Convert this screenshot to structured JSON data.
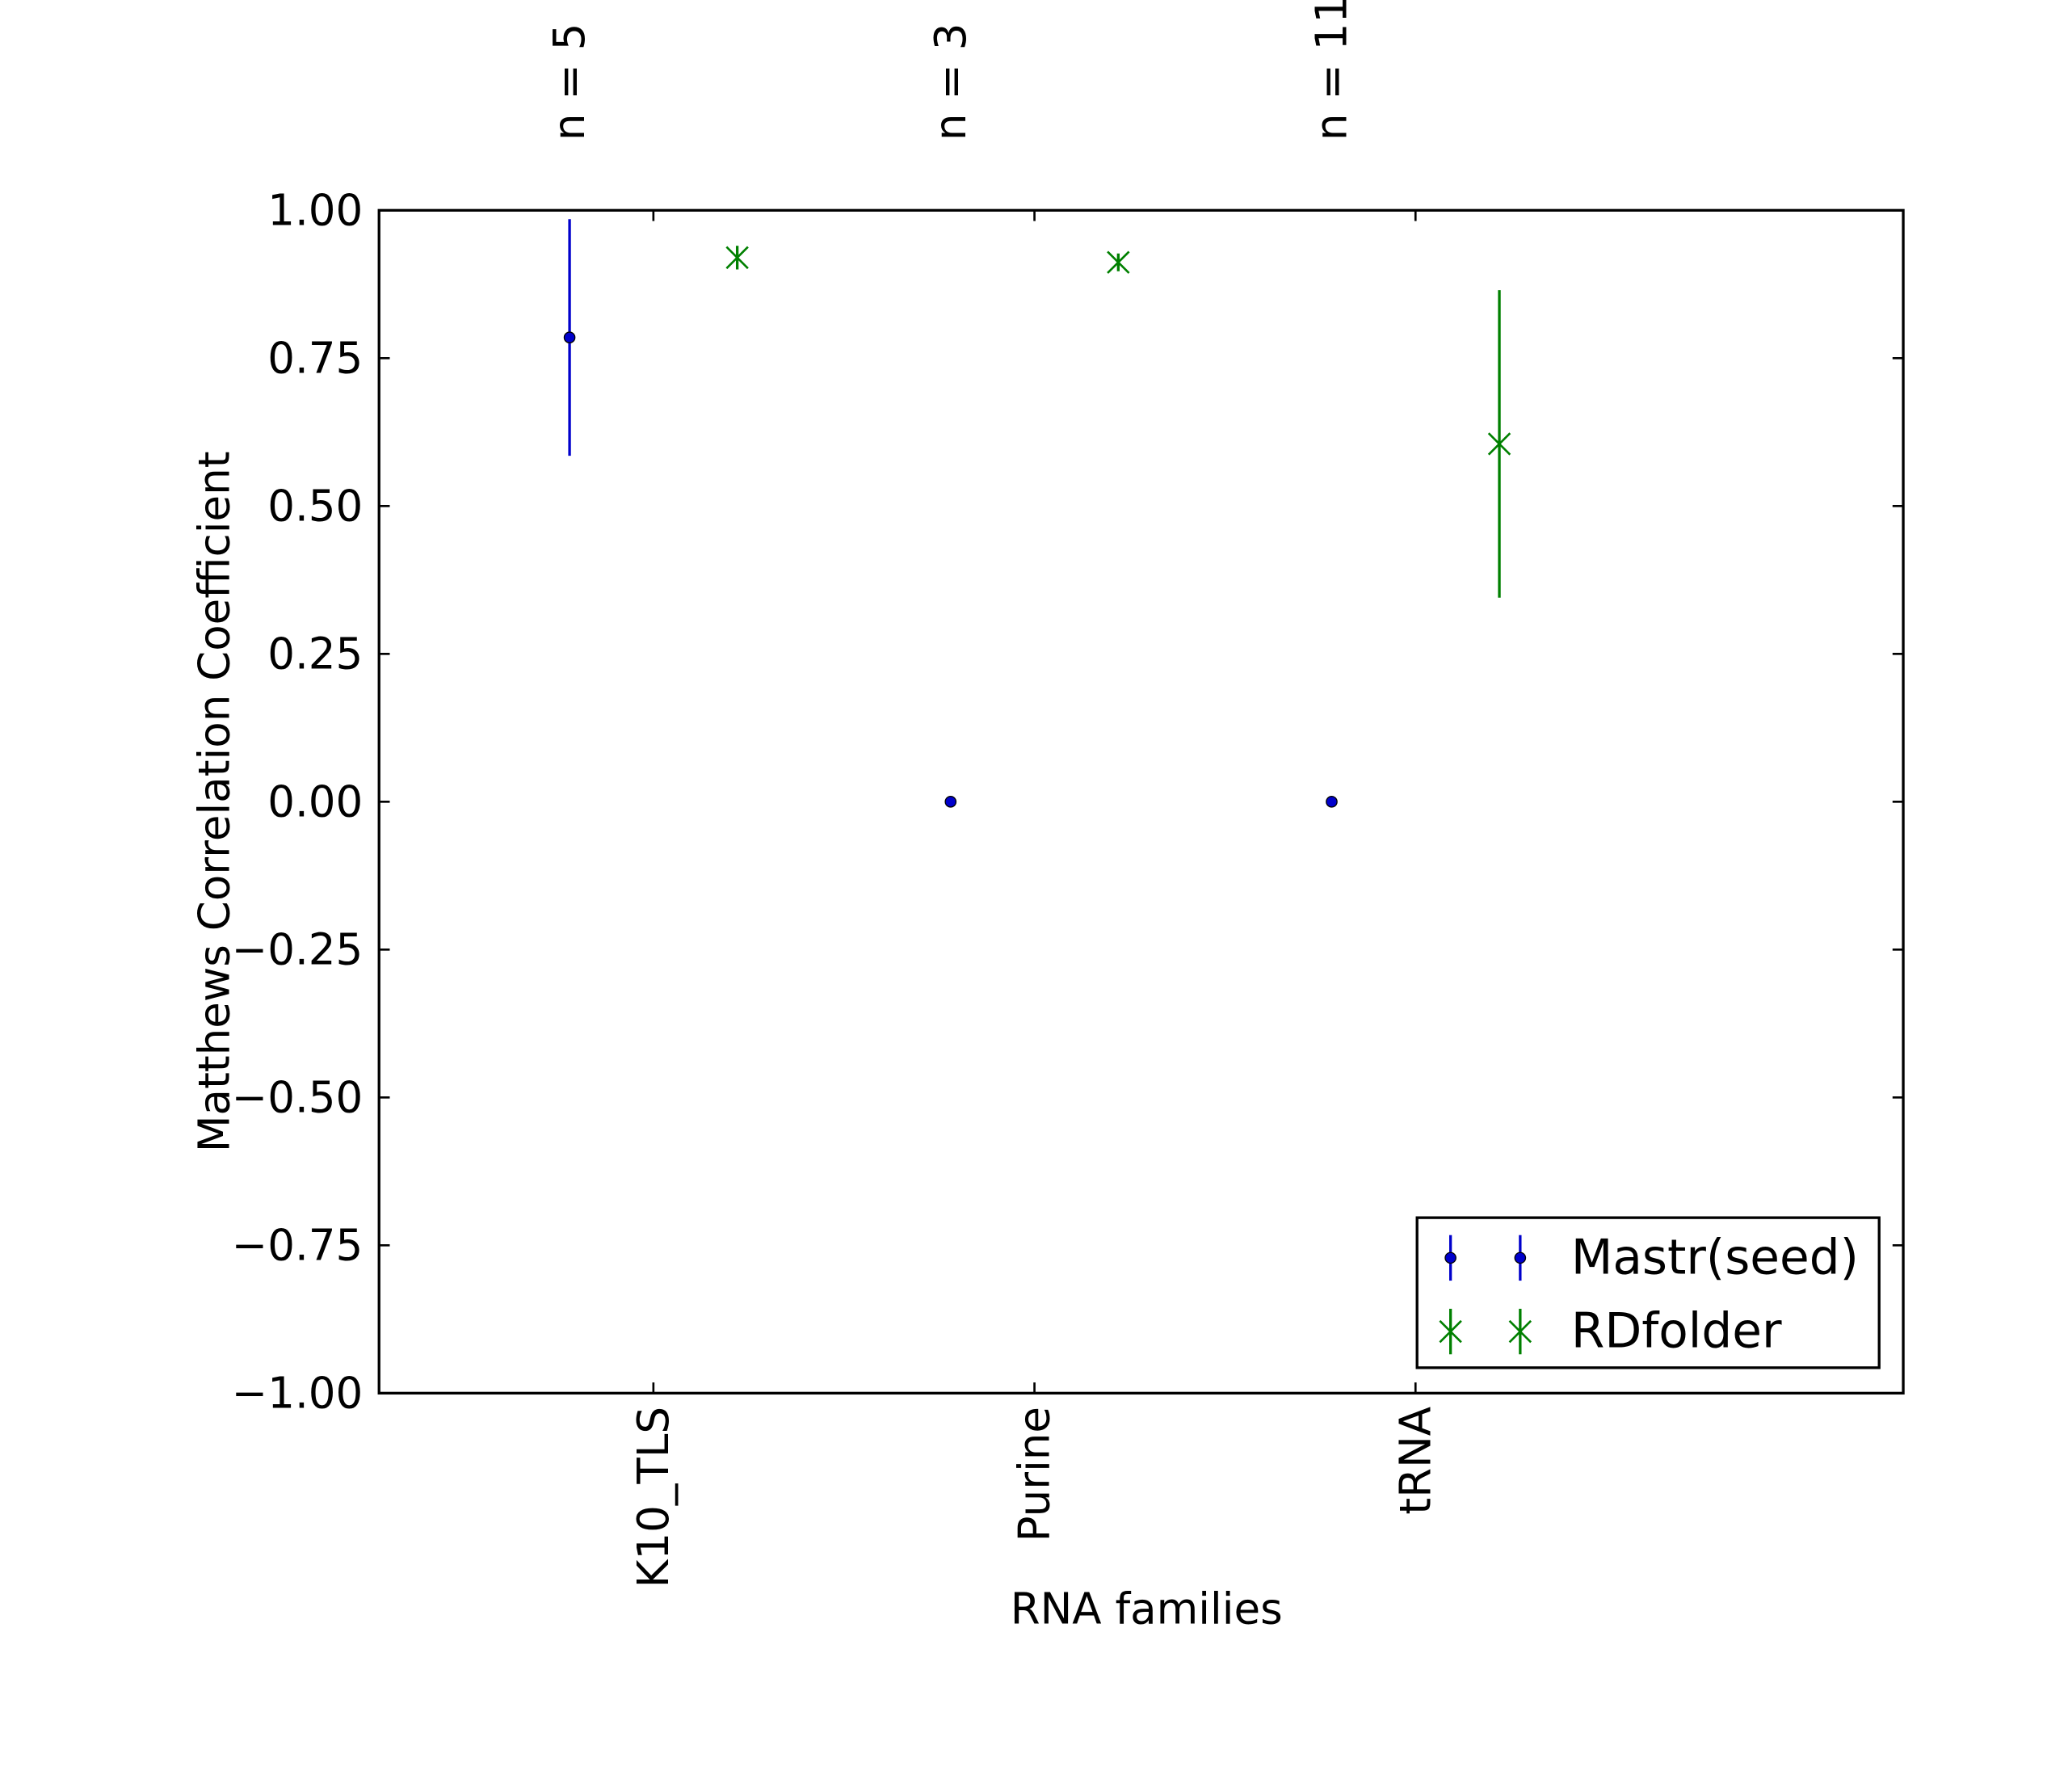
{
  "chart_data": {
    "type": "scatter",
    "xlabel": "RNA families",
    "ylabel": "Matthews Correlation Coefficient",
    "categories": [
      "K10_TLS",
      "Purine",
      "tRNA"
    ],
    "sample_counts": [
      "n = 5",
      "n = 3",
      "n = 11"
    ],
    "ylim": [
      -1.0,
      1.0
    ],
    "yticks": [
      1.0,
      0.75,
      0.5,
      0.25,
      0.0,
      -0.25,
      -0.5,
      -0.75,
      -1.0
    ],
    "ytick_labels": [
      "1.00",
      "0.75",
      "0.50",
      "0.25",
      "0.00",
      "−0.25",
      "−0.50",
      "−0.75",
      "−1.00"
    ],
    "grid": false,
    "legend_position": "lower-right",
    "series": [
      {
        "name": "Mastr(seed)",
        "color": "#0000cc",
        "marker": "dot",
        "offset": -0.22,
        "values": [
          0.785,
          0.0,
          0.0
        ],
        "error_low": [
          0.585,
          0.0,
          0.0
        ],
        "error_high": [
          0.985,
          0.0,
          0.0
        ]
      },
      {
        "name": "RDfolder",
        "color": "#008000",
        "marker": "x",
        "offset": 0.22,
        "values": [
          0.92,
          0.912,
          0.605
        ],
        "error_low": [
          0.9,
          0.897,
          0.345
        ],
        "error_high": [
          0.94,
          0.927,
          0.865
        ]
      }
    ]
  }
}
